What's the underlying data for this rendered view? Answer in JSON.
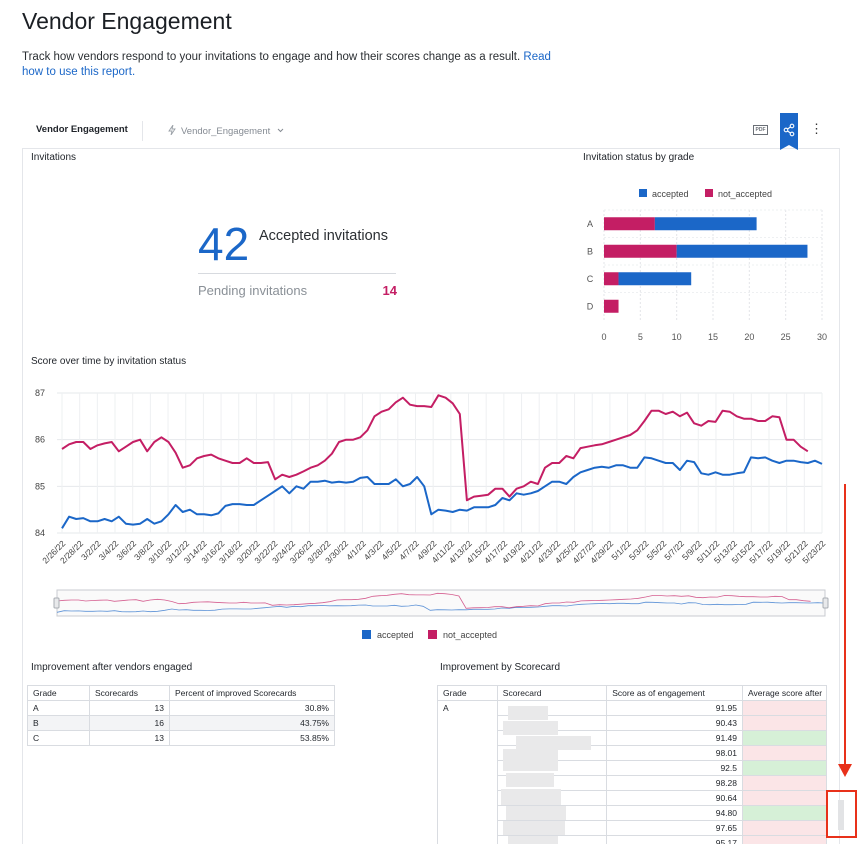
{
  "page": {
    "title": "Vendor Engagement",
    "description": "Track how vendors respond to your invitations to engage and how their scores change as a result.",
    "link_text": "Read how to use this report."
  },
  "toolbar": {
    "tab_label": "Vendor Engagement",
    "model_label": "Vendor_Engagement",
    "pdf_label": "PDF",
    "more_label": "⋮"
  },
  "invitations": {
    "title": "Invitations",
    "accepted_value": "42",
    "accepted_label": "Accepted invitations",
    "pending_label": "Pending invitations",
    "pending_value": "14"
  },
  "colors": {
    "accepted": "#1b67c8",
    "not_accepted": "#c41e64",
    "accent": "#1b67c8"
  },
  "chart_data": [
    {
      "type": "bar",
      "title": "Invitation status by grade",
      "orientation": "horizontal",
      "stacked": true,
      "categories": [
        "A",
        "B",
        "C",
        "D"
      ],
      "series": [
        {
          "name": "not_accepted",
          "values": [
            7,
            10,
            2,
            2
          ]
        },
        {
          "name": "accepted",
          "values": [
            14,
            18,
            10,
            0
          ]
        }
      ],
      "xlim": [
        0,
        30
      ],
      "xticks": [
        "0",
        "5",
        "10",
        "15",
        "20",
        "25",
        "30"
      ],
      "legend": "top",
      "grid": true
    },
    {
      "type": "line",
      "title": "Score over time by invitation status",
      "ylim": [
        84,
        87
      ],
      "yticks": [
        "84",
        "85",
        "86",
        "87"
      ],
      "xticks": [
        "2/26/22",
        "2/28/22",
        "3/2/22",
        "3/4/22",
        "3/6/22",
        "3/8/22",
        "3/10/22",
        "3/12/22",
        "3/14/22",
        "3/16/22",
        "3/18/22",
        "3/20/22",
        "3/22/22",
        "3/24/22",
        "3/26/22",
        "3/28/22",
        "3/30/22",
        "4/1/22",
        "4/3/22",
        "4/5/22",
        "4/7/22",
        "4/9/22",
        "4/11/22",
        "4/13/22",
        "4/15/22",
        "4/17/22",
        "4/19/22",
        "4/21/22",
        "4/23/22",
        "4/25/22",
        "4/27/22",
        "4/29/22",
        "5/1/22",
        "5/3/22",
        "5/5/22",
        "5/7/22",
        "5/9/22",
        "5/11/22",
        "5/13/22",
        "5/15/22",
        "5/17/22",
        "5/19/22",
        "5/21/22",
        "5/23/22"
      ],
      "series": [
        {
          "name": "accepted",
          "values": [
            84.1,
            84.35,
            84.3,
            84.32,
            84.25,
            84.25,
            84.3,
            84.25,
            84.35,
            84.2,
            84.18,
            84.2,
            84.3,
            84.2,
            84.25,
            84.4,
            84.6,
            84.45,
            84.5,
            84.4,
            84.4,
            84.38,
            84.42,
            84.58,
            84.62,
            84.62,
            84.6,
            84.6,
            84.7,
            84.8,
            84.9,
            85.0,
            84.85,
            85.0,
            84.95,
            85.1,
            85.1,
            85.12,
            85.08,
            85.1,
            85.08,
            85.1,
            85.18,
            85.2,
            85.05,
            85.05,
            85.05,
            85.15,
            85.0,
            85.05,
            85.2,
            85.0,
            84.4,
            84.5,
            84.48,
            84.45,
            84.5,
            84.48,
            84.55,
            84.55,
            84.55,
            84.6,
            84.75,
            84.7,
            84.85,
            84.82,
            84.85,
            84.9,
            85.0,
            85.1,
            85.1,
            85.05,
            85.2,
            85.3,
            85.35,
            85.4,
            85.42,
            85.4,
            85.45,
            85.45,
            85.4,
            85.4,
            85.62,
            85.6,
            85.55,
            85.5,
            85.5,
            85.35,
            85.55,
            85.52,
            85.28,
            85.25,
            85.3,
            85.25,
            85.25,
            85.28,
            85.3,
            85.62,
            85.6,
            85.62,
            85.55,
            85.5,
            85.55,
            85.55,
            85.52,
            85.5,
            85.55,
            85.48
          ]
        },
        {
          "name": "not_accepted",
          "values": [
            85.8,
            85.9,
            85.95,
            85.95,
            85.8,
            85.88,
            85.92,
            85.95,
            85.75,
            85.85,
            85.95,
            86.0,
            85.75,
            85.95,
            86.05,
            85.95,
            85.72,
            85.4,
            85.45,
            85.6,
            85.65,
            85.68,
            85.6,
            85.55,
            85.5,
            85.5,
            85.6,
            85.5,
            85.5,
            85.52,
            85.15,
            85.25,
            85.2,
            85.25,
            85.32,
            85.4,
            85.45,
            85.55,
            85.7,
            85.95,
            86.0,
            86.0,
            86.05,
            86.2,
            86.5,
            86.6,
            86.65,
            86.8,
            86.9,
            86.75,
            86.72,
            86.72,
            86.7,
            86.95,
            86.9,
            86.78,
            86.55,
            84.7,
            84.78,
            84.8,
            84.82,
            84.95,
            84.95,
            84.78,
            84.95,
            85.0,
            85.1,
            85.05,
            85.4,
            85.5,
            85.5,
            85.65,
            85.6,
            85.82,
            85.85,
            85.88,
            85.9,
            85.95,
            86.0,
            86.05,
            86.1,
            86.2,
            86.4,
            86.62,
            86.62,
            86.55,
            86.6,
            86.5,
            86.58,
            86.35,
            86.3,
            86.4,
            86.38,
            86.62,
            86.6,
            86.5,
            86.45,
            86.45,
            86.4,
            86.4,
            86.5,
            86.48,
            86.0,
            86.0,
            85.85,
            85.75
          ]
        }
      ],
      "legend": "bottom",
      "grid": true,
      "range_slider": true
    }
  ],
  "legend": {
    "accepted": "accepted",
    "not_accepted": "not_accepted"
  },
  "grade_table": {
    "title": "Improvement after vendors engaged",
    "headers": [
      "Grade",
      "Scorecards",
      "Percent of improved Scorecards"
    ],
    "rows": [
      [
        "A",
        "13",
        "30.8%"
      ],
      [
        "B",
        "16",
        "43.75%"
      ],
      [
        "C",
        "13",
        "53.85%"
      ]
    ]
  },
  "scorecard_table": {
    "title": "Improvement by Scorecard",
    "headers": [
      "Grade",
      "Scorecard",
      "Score as of engagement",
      "Average score after"
    ],
    "grade": "A",
    "scores": [
      "91.95",
      "90.43",
      "91.49",
      "98.01",
      "92.5",
      "98.28",
      "90.64",
      "94.80",
      "97.65",
      "95.17"
    ],
    "avg_status": [
      "red",
      "red",
      "green",
      "red",
      "green",
      "red",
      "red",
      "green",
      "red",
      "red"
    ]
  }
}
